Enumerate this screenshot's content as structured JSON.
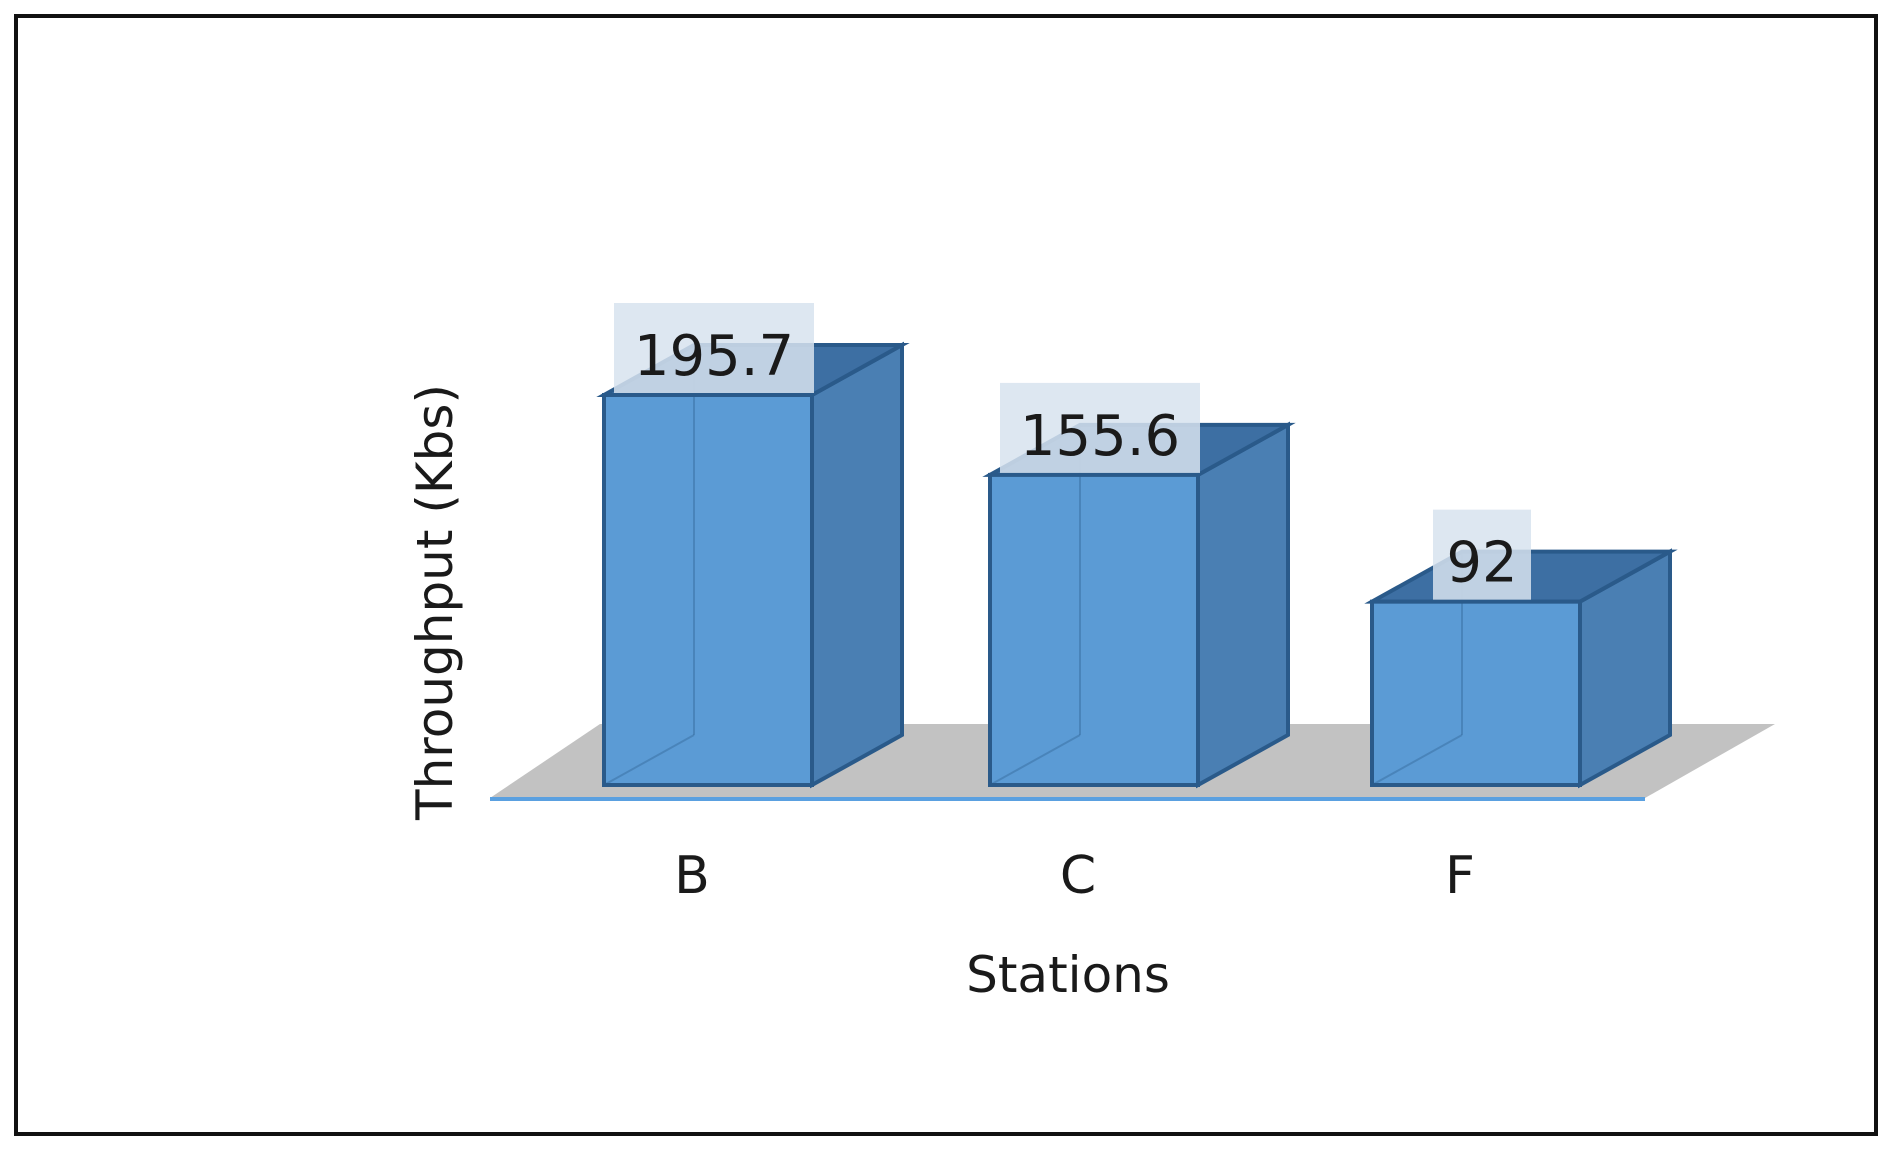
{
  "chart_data": {
    "type": "bar",
    "style": "3d-column",
    "categories": [
      "B",
      "C",
      "F"
    ],
    "values": [
      195.7,
      155.6,
      92
    ],
    "data_labels": [
      "195.7",
      "155.6",
      "92"
    ],
    "title": "",
    "xlabel": "Stations",
    "ylabel": "Throughput (Kbs)",
    "ylim": [
      0,
      195.7
    ],
    "grid": false,
    "legend": "none",
    "colors": {
      "front": "#5b9bd5",
      "side": "#4a7fb3",
      "top": "#3d6fa3",
      "edge": "#2a5a8a",
      "floor": "#c2c2c2",
      "floor_edge": "#5aa0e0",
      "label_box": "#d7e3ef"
    }
  }
}
